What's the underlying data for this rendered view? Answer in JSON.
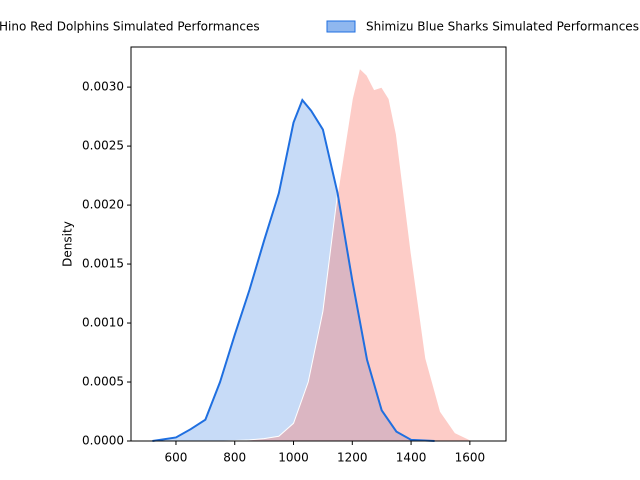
{
  "chart_data": {
    "type": "kde",
    "ylabel": "Density",
    "xlim": [
      447,
      1723
    ],
    "ylim": [
      0,
      0.00334
    ],
    "xticks": [
      600,
      800,
      1000,
      1200,
      1400,
      1600
    ],
    "yticks": [
      {
        "value": 0,
        "label": "0.0000"
      },
      {
        "value": 0.0005,
        "label": "0.0005"
      },
      {
        "value": 0.001,
        "label": "0.0010"
      },
      {
        "value": 0.0015,
        "label": "0.0015"
      },
      {
        "value": 0.002,
        "label": "0.0020"
      },
      {
        "value": 0.0025,
        "label": "0.0025"
      },
      {
        "value": 0.003,
        "label": "0.0030"
      }
    ],
    "grid": false,
    "legend": "upper center",
    "series": [
      {
        "name": "Hino Red Dolphins Simulated Performances",
        "color": "#fa8072",
        "x": [
          760,
          850,
          900,
          950,
          1000,
          1050,
          1100,
          1150,
          1200,
          1225,
          1250,
          1275,
          1300,
          1325,
          1350,
          1400,
          1450,
          1500,
          1550,
          1600,
          1620
        ],
        "values": [
          0,
          1e-05,
          2e-05,
          4e-05,
          0.00015,
          0.0005,
          0.0011,
          0.0021,
          0.0029,
          0.00316,
          0.0031,
          0.00298,
          0.003,
          0.0029,
          0.0026,
          0.0016,
          0.0007,
          0.00025,
          7e-05,
          1e-05,
          0
        ]
      },
      {
        "name": "Shimizu Blue Sharks Simulated Performances",
        "color": "#1f6fe0",
        "x": [
          520,
          600,
          650,
          700,
          750,
          800,
          850,
          900,
          950,
          1000,
          1030,
          1060,
          1100,
          1150,
          1200,
          1250,
          1300,
          1350,
          1400,
          1480
        ],
        "values": [
          0,
          3e-05,
          0.0001,
          0.00018,
          0.0005,
          0.0009,
          0.00128,
          0.0017,
          0.0021,
          0.0027,
          0.00289,
          0.0028,
          0.00264,
          0.0021,
          0.00136,
          0.00069,
          0.00026,
          8e-05,
          1e-05,
          0
        ]
      }
    ]
  }
}
